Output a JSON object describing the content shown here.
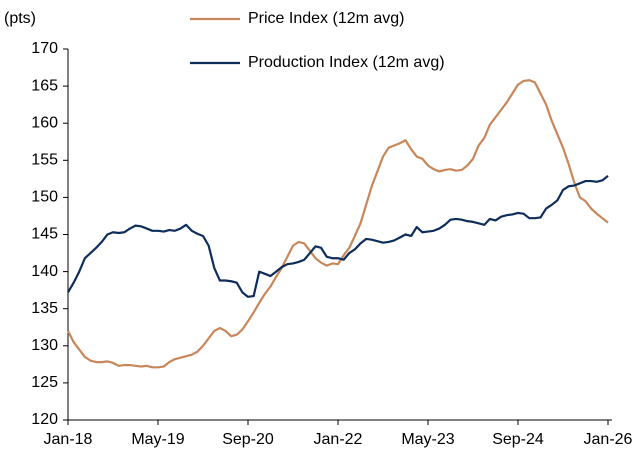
{
  "chart_data": {
    "type": "line",
    "y_label": "(pts)",
    "categories": [
      "Jan-18",
      null,
      null,
      null,
      null,
      null,
      null,
      null,
      null,
      null,
      null,
      null,
      null,
      null,
      null,
      null,
      "May-19",
      null,
      null,
      null,
      null,
      null,
      null,
      null,
      null,
      null,
      null,
      null,
      null,
      null,
      null,
      null,
      "Sep-20",
      null,
      null,
      null,
      null,
      null,
      null,
      null,
      null,
      null,
      null,
      null,
      null,
      null,
      null,
      null,
      "Jan-22",
      null,
      null,
      null,
      null,
      null,
      null,
      null,
      null,
      null,
      null,
      null,
      null,
      null,
      null,
      null,
      "May-23",
      null,
      null,
      null,
      null,
      null,
      null,
      null,
      null,
      null,
      null,
      null,
      null,
      null,
      null,
      null,
      "Sep-24",
      null,
      null,
      null,
      null,
      null,
      null,
      null,
      null,
      null,
      null,
      null,
      null,
      null,
      null,
      null,
      "Jan-26"
    ],
    "series": [
      {
        "name": "Price Index (12m avg)",
        "color": "#c8875a",
        "values": [
          132,
          130.5,
          129.5,
          128.5,
          128,
          127.8,
          127.8,
          127.9,
          127.7,
          127.3,
          127.4,
          127.4,
          127.3,
          127.2,
          127.3,
          127.1,
          127.1,
          127.2,
          127.8,
          128.2,
          128.4,
          128.6,
          128.8,
          129.2,
          130,
          131,
          132,
          132.4,
          132,
          131.3,
          131.5,
          132.2,
          133.3,
          134.5,
          135.8,
          137,
          138,
          139.3,
          140.5,
          142,
          143.5,
          144,
          143.8,
          142.8,
          141.8,
          141.2,
          140.8,
          141.1,
          141,
          142.2,
          143.2,
          144.8,
          146.5,
          149,
          151.5,
          153.5,
          155.5,
          156.7,
          157,
          157.3,
          157.7,
          156.5,
          155.5,
          155.2,
          154.3,
          153.8,
          153.5,
          153.7,
          153.8,
          153.6,
          153.7,
          154.3,
          155.2,
          157,
          158,
          159.8,
          160.8,
          161.8,
          162.8,
          164,
          165.2,
          165.7,
          165.8,
          165.5,
          164,
          162.5,
          160.3,
          158.5,
          156.7,
          154.5,
          152,
          150,
          149.5,
          148.5,
          147.8,
          147.2,
          146.6
        ]
      },
      {
        "name": "Production Index (12m avg)",
        "color": "#0e2d5b",
        "values": [
          137.2,
          138.5,
          140,
          141.8,
          142.5,
          143.2,
          144,
          145,
          145.3,
          145.2,
          145.3,
          145.8,
          146.2,
          146.1,
          145.8,
          145.5,
          145.5,
          145.4,
          145.6,
          145.5,
          145.8,
          146.3,
          145.5,
          145.1,
          144.8,
          143.5,
          140.5,
          138.8,
          138.8,
          138.7,
          138.5,
          137.2,
          136.6,
          136.7,
          140,
          139.7,
          139.4,
          140,
          140.6,
          141,
          141.1,
          141.3,
          141.6,
          142.5,
          143.4,
          143.2,
          142,
          141.8,
          141.8,
          141.6,
          142.5,
          143,
          143.8,
          144.4,
          144.3,
          144.1,
          143.9,
          144,
          144.2,
          144.6,
          145,
          144.8,
          146,
          145.3,
          145.4,
          145.5,
          145.8,
          146.3,
          147,
          147.1,
          147,
          146.8,
          146.7,
          146.5,
          146.3,
          147.1,
          146.9,
          147.4,
          147.6,
          147.7,
          147.9,
          147.8,
          147.2,
          147.2,
          147.3,
          148.5,
          149,
          149.6,
          151,
          151.5,
          151.6,
          151.9,
          152.2,
          152.2,
          152.1,
          152.3,
          152.9
        ]
      }
    ],
    "ylim": [
      120,
      170
    ],
    "yticks": [
      120,
      125,
      130,
      135,
      140,
      145,
      150,
      155,
      160,
      165,
      170
    ],
    "grid": false
  }
}
